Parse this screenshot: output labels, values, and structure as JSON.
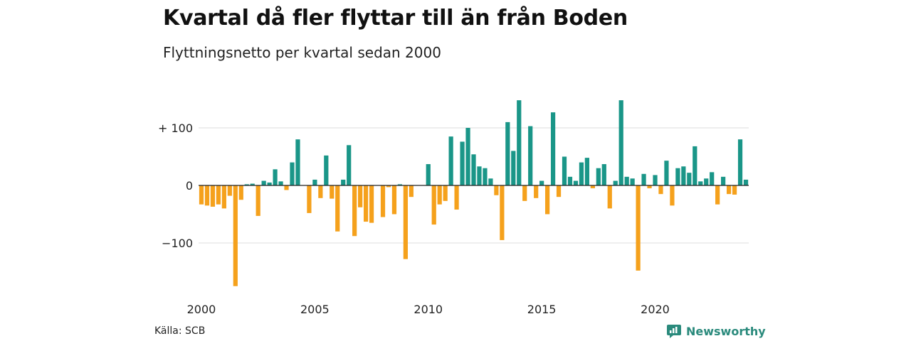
{
  "title": "Kvartal då fler flyttar till än från Boden",
  "subtitle": "Flyttningsnetto per kvartal sedan 2000",
  "source": "Källa: SCB",
  "brand": "Newsworthy",
  "colors": {
    "positive": "#1a9688",
    "negative": "#f5a11c",
    "grid": "#dcdcdc",
    "brand": "#2a8a7c"
  },
  "chart_data": {
    "type": "bar",
    "title": "Kvartal då fler flyttar till än från Boden",
    "subtitle": "Flyttningsnetto per kvartal sedan 2000",
    "x_start": "2000 Q1",
    "x_ticks": [
      "2000",
      "2005",
      "2010",
      "2015",
      "2020"
    ],
    "y_ticks": [
      {
        "value": 100,
        "label": "+ 100"
      },
      {
        "value": 0,
        "label": "0"
      },
      {
        "value": -100,
        "label": "−100"
      }
    ],
    "ylim": [
      -175,
      150
    ],
    "grid": true,
    "values": [
      -33,
      -35,
      -37,
      -33,
      -40,
      -18,
      -175,
      -25,
      2,
      3,
      -53,
      8,
      5,
      28,
      7,
      -8,
      40,
      80,
      0,
      -48,
      10,
      -22,
      52,
      -23,
      -80,
      10,
      70,
      -88,
      -38,
      -63,
      -65,
      0,
      -55,
      -3,
      -50,
      2,
      -128,
      -20,
      0,
      0,
      37,
      -68,
      -33,
      -27,
      85,
      -42,
      76,
      100,
      54,
      33,
      30,
      12,
      -17,
      -95,
      110,
      60,
      148,
      -27,
      103,
      -22,
      8,
      -50,
      127,
      -20,
      50,
      15,
      8,
      40,
      48,
      -5,
      30,
      37,
      -40,
      8,
      148,
      15,
      12,
      -148,
      20,
      -5,
      18,
      -15,
      43,
      -35,
      30,
      33,
      22,
      68,
      7,
      12,
      23,
      -33,
      15,
      -15,
      -16,
      80,
      10
    ]
  }
}
